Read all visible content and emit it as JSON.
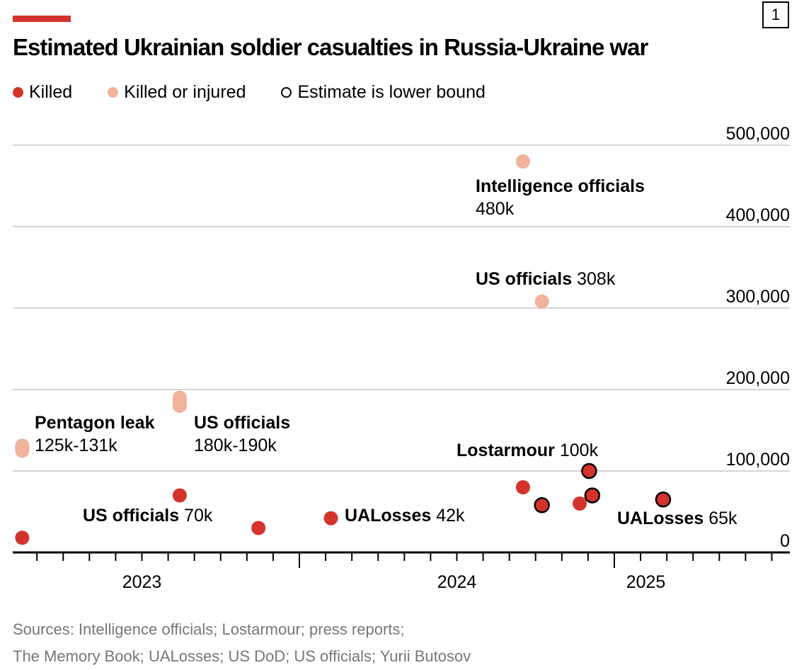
{
  "header": {
    "title": "Estimated Ukrainian soldier casualties in Russia-Ukraine war",
    "badge": "1"
  },
  "legend": [
    {
      "label": "Killed",
      "color": "#d4332b"
    },
    {
      "label": "Killed or injured",
      "color": "#f0b29a"
    },
    {
      "label": "Estimate is lower bound",
      "color": "#ffffff"
    }
  ],
  "chart_data": {
    "type": "scatter",
    "title": "Estimated Ukrainian soldier casualties in Russia-Ukraine war",
    "ylim": [
      0,
      500000
    ],
    "yticks": [
      {
        "v": 0,
        "label": "0"
      },
      {
        "v": 100000,
        "label": "100,000"
      },
      {
        "v": 200000,
        "label": "200,000"
      },
      {
        "v": 300000,
        "label": "300,000"
      },
      {
        "v": 400000,
        "label": "400,000"
      },
      {
        "v": 500000,
        "label": "500,000"
      }
    ],
    "xlim": [
      2023.05,
      2025.55
    ],
    "xticks": [
      {
        "v": 2023.5,
        "label": "2023"
      },
      {
        "v": 2024.5,
        "label": "2024"
      },
      {
        "v": 2025.1,
        "label": "2025"
      }
    ],
    "year_boundaries": [
      2024,
      2025
    ],
    "grid": true,
    "points": [
      {
        "x": 2023.12,
        "y": 18000,
        "kind": "killed",
        "lower": false
      },
      {
        "x": 2023.62,
        "y": 70000,
        "kind": "killed",
        "lower": false
      },
      {
        "x": 2023.87,
        "y": 30000,
        "kind": "killed",
        "lower": false
      },
      {
        "x": 2024.1,
        "y": 42000,
        "kind": "killed",
        "lower": false
      },
      {
        "x": 2024.71,
        "y": 80000,
        "kind": "killed",
        "lower": false
      },
      {
        "x": 2024.77,
        "y": 58000,
        "kind": "killed",
        "lower": true
      },
      {
        "x": 2024.89,
        "y": 60000,
        "kind": "killed",
        "lower": false
      },
      {
        "x": 2024.92,
        "y": 100000,
        "kind": "killed",
        "lower": true
      },
      {
        "x": 2024.93,
        "y": 70000,
        "kind": "killed",
        "lower": true
      },
      {
        "x": 2025.155,
        "y": 65000,
        "kind": "killed",
        "lower": true
      },
      {
        "x": 2024.71,
        "y": 480000,
        "kind": "injured",
        "lower": false
      },
      {
        "x": 2024.77,
        "y": 308000,
        "kind": "injured",
        "lower": false
      }
    ],
    "ranges": [
      {
        "x": 2023.12,
        "y0": 125000,
        "y1": 131000,
        "kind": "injured"
      },
      {
        "x": 2023.62,
        "y0": 180000,
        "y1": 190000,
        "kind": "injured"
      }
    ]
  },
  "annotations": [
    {
      "name": "Intelligence officials",
      "value": "480k"
    },
    {
      "name": "US officials",
      "value": "308k"
    },
    {
      "name": "Pentagon leak",
      "value": "125k-131k"
    },
    {
      "name": "US officials",
      "value": "180k-190k"
    },
    {
      "name": "Lostarmour",
      "value": "100k"
    },
    {
      "name": "US officials",
      "value": "70k"
    },
    {
      "name": "UALosses",
      "value": "42k"
    },
    {
      "name": "UALosses",
      "value": "65k"
    }
  ],
  "sources": [
    "Sources: Intelligence officials; Lostarmour; press reports;",
    "The Memory Book; UALosses; US DoD; US officials; Yurii Butosov"
  ]
}
